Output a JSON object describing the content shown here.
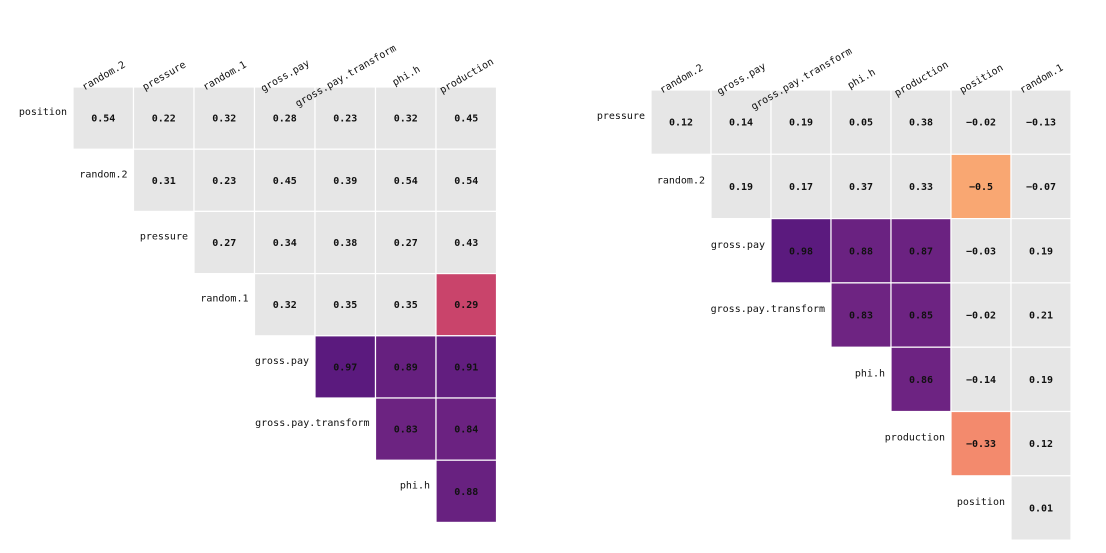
{
  "chart_data": [
    {
      "type": "heatmap",
      "columns": [
        "random.2",
        "pressure",
        "random.1",
        "gross.pay",
        "gross.pay.transform",
        "phi.h",
        "production"
      ],
      "rows": [
        "position",
        "random.2",
        "pressure",
        "random.1",
        "gross.pay",
        "gross.pay.transform",
        "phi.h"
      ],
      "cells": [
        [
          0.54,
          0.22,
          0.32,
          0.28,
          0.23,
          0.32,
          0.45
        ],
        [
          null,
          0.31,
          0.23,
          0.45,
          0.39,
          0.54,
          0.54
        ],
        [
          null,
          null,
          0.27,
          0.34,
          0.38,
          0.27,
          0.43
        ],
        [
          null,
          null,
          null,
          0.32,
          0.35,
          0.35,
          0.29
        ],
        [
          null,
          null,
          null,
          null,
          0.97,
          0.89,
          0.91
        ],
        [
          null,
          null,
          null,
          null,
          null,
          0.83,
          0.84
        ],
        [
          null,
          null,
          null,
          null,
          null,
          null,
          0.88
        ]
      ],
      "highlighted": [
        [
          3,
          6,
          "#c9446b"
        ],
        [
          4,
          4,
          "#5b1a7e"
        ],
        [
          4,
          5,
          "#66207f"
        ],
        [
          4,
          6,
          "#621e7f"
        ],
        [
          5,
          5,
          "#6c2381"
        ],
        [
          5,
          6,
          "#6b2281"
        ],
        [
          6,
          6,
          "#682180"
        ]
      ]
    },
    {
      "type": "heatmap",
      "columns": [
        "random.2",
        "gross.pay",
        "gross.pay.transform",
        "phi.h",
        "production",
        "position",
        "random.1"
      ],
      "rows": [
        "pressure",
        "random.2",
        "gross.pay",
        "gross.pay.transform",
        "phi.h",
        "production",
        "position"
      ],
      "cells": [
        [
          0.12,
          0.14,
          0.19,
          0.05,
          0.38,
          -0.02,
          -0.13
        ],
        [
          null,
          0.19,
          0.17,
          0.37,
          0.33,
          -0.5,
          -0.07
        ],
        [
          null,
          null,
          0.98,
          0.88,
          0.87,
          -0.03,
          0.19
        ],
        [
          null,
          null,
          null,
          0.83,
          0.85,
          -0.02,
          0.21
        ],
        [
          null,
          null,
          null,
          null,
          0.86,
          -0.14,
          0.19
        ],
        [
          null,
          null,
          null,
          null,
          null,
          -0.33,
          0.12
        ],
        [
          null,
          null,
          null,
          null,
          null,
          null,
          0.01
        ]
      ],
      "highlighted": [
        [
          1,
          5,
          "#f9a772"
        ],
        [
          2,
          2,
          "#5b1a7e"
        ],
        [
          2,
          3,
          "#6a2281"
        ],
        [
          2,
          4,
          "#6b2281"
        ],
        [
          3,
          3,
          "#6e2482"
        ],
        [
          3,
          4,
          "#6d2382"
        ],
        [
          4,
          4,
          "#6d2382"
        ],
        [
          5,
          5,
          "#f38a6d"
        ]
      ]
    }
  ],
  "colors": {
    "neutral_cell": "#e6e6e6",
    "cell_border": "#ffffff",
    "dark_text": "#111111",
    "light_text": "#111111"
  }
}
